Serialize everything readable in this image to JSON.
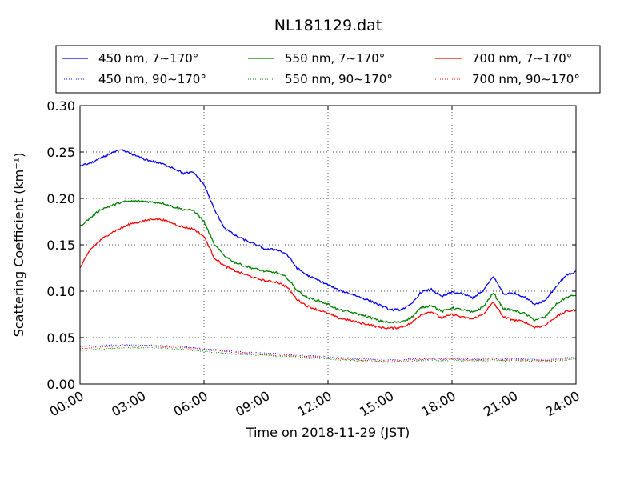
{
  "chart_data": {
    "type": "line",
    "title": "NL181129.dat",
    "xlabel": "Time on 2018-11-29 (JST)",
    "ylabel": "Scattering Coefficient (km⁻¹)",
    "xlim": [
      0,
      24
    ],
    "ylim": [
      0,
      0.3
    ],
    "x_tick_labels": [
      "00:00",
      "03:00",
      "06:00",
      "09:00",
      "12:00",
      "15:00",
      "18:00",
      "21:00",
      "24:00"
    ],
    "x_tick_values": [
      0,
      3,
      6,
      9,
      12,
      15,
      18,
      21,
      24
    ],
    "y_tick_labels": [
      "0.00",
      "0.05",
      "0.10",
      "0.15",
      "0.20",
      "0.25",
      "0.30"
    ],
    "y_tick_values": [
      0,
      0.05,
      0.1,
      0.15,
      0.2,
      0.25,
      0.3
    ],
    "grid": true,
    "legend_position": "top (above plot, 3 columns)",
    "x_hours": [
      0,
      0.5,
      1,
      1.5,
      2,
      2.5,
      3,
      3.5,
      4,
      4.5,
      5,
      5.5,
      6,
      6.5,
      7,
      7.5,
      8,
      8.5,
      9,
      9.5,
      10,
      10.5,
      11,
      11.5,
      12,
      12.5,
      13,
      13.5,
      14,
      14.5,
      15,
      15.5,
      16,
      16.5,
      17,
      17.5,
      18,
      18.5,
      19,
      19.5,
      20,
      20.5,
      21,
      21.5,
      22,
      22.5,
      23,
      23.5,
      24
    ],
    "series": [
      {
        "name": "450 nm, 7∼170°",
        "color": "#0000ff",
        "style": "solid",
        "values": [
          0.235,
          0.238,
          0.243,
          0.249,
          0.252,
          0.248,
          0.243,
          0.24,
          0.237,
          0.233,
          0.227,
          0.228,
          0.215,
          0.188,
          0.168,
          0.16,
          0.155,
          0.15,
          0.145,
          0.145,
          0.14,
          0.125,
          0.117,
          0.112,
          0.107,
          0.101,
          0.098,
          0.094,
          0.09,
          0.085,
          0.08,
          0.08,
          0.085,
          0.099,
          0.102,
          0.094,
          0.099,
          0.097,
          0.093,
          0.1,
          0.116,
          0.097,
          0.098,
          0.094,
          0.086,
          0.09,
          0.104,
          0.117,
          0.121
        ]
      },
      {
        "name": "550 nm, 7∼170°",
        "color": "#008000",
        "style": "solid",
        "values": [
          0.17,
          0.179,
          0.188,
          0.192,
          0.196,
          0.197,
          0.197,
          0.196,
          0.195,
          0.191,
          0.188,
          0.187,
          0.175,
          0.15,
          0.138,
          0.131,
          0.127,
          0.124,
          0.121,
          0.12,
          0.115,
          0.101,
          0.093,
          0.09,
          0.086,
          0.08,
          0.078,
          0.075,
          0.072,
          0.068,
          0.066,
          0.067,
          0.071,
          0.082,
          0.085,
          0.078,
          0.082,
          0.08,
          0.077,
          0.083,
          0.098,
          0.081,
          0.079,
          0.076,
          0.069,
          0.072,
          0.085,
          0.093,
          0.096
        ]
      },
      {
        "name": "700 nm, 7∼170°",
        "color": "#ff0000",
        "style": "solid",
        "values": [
          0.125,
          0.145,
          0.155,
          0.163,
          0.168,
          0.173,
          0.175,
          0.178,
          0.177,
          0.173,
          0.169,
          0.167,
          0.159,
          0.136,
          0.127,
          0.122,
          0.118,
          0.114,
          0.111,
          0.11,
          0.105,
          0.091,
          0.084,
          0.08,
          0.076,
          0.071,
          0.069,
          0.066,
          0.064,
          0.061,
          0.06,
          0.061,
          0.065,
          0.075,
          0.078,
          0.071,
          0.075,
          0.072,
          0.07,
          0.075,
          0.088,
          0.072,
          0.069,
          0.067,
          0.061,
          0.063,
          0.072,
          0.078,
          0.08
        ]
      },
      {
        "name": "450 nm, 90∼170°",
        "color": "#0000ff",
        "style": "dotted",
        "values": [
          0.04,
          0.041,
          0.041,
          0.042,
          0.042,
          0.042,
          0.042,
          0.042,
          0.041,
          0.041,
          0.04,
          0.039,
          0.038,
          0.037,
          0.036,
          0.035,
          0.034,
          0.034,
          0.033,
          0.033,
          0.032,
          0.031,
          0.03,
          0.03,
          0.029,
          0.028,
          0.028,
          0.027,
          0.027,
          0.026,
          0.026,
          0.026,
          0.027,
          0.027,
          0.028,
          0.027,
          0.028,
          0.027,
          0.027,
          0.027,
          0.028,
          0.027,
          0.027,
          0.027,
          0.026,
          0.026,
          0.027,
          0.028,
          0.029
        ]
      },
      {
        "name": "550 nm, 90∼170°",
        "color": "#008000",
        "style": "dotted",
        "values": [
          0.036,
          0.037,
          0.038,
          0.038,
          0.039,
          0.039,
          0.039,
          0.039,
          0.039,
          0.038,
          0.037,
          0.036,
          0.035,
          0.034,
          0.033,
          0.032,
          0.032,
          0.031,
          0.031,
          0.03,
          0.03,
          0.029,
          0.028,
          0.028,
          0.027,
          0.026,
          0.026,
          0.025,
          0.025,
          0.024,
          0.024,
          0.024,
          0.025,
          0.025,
          0.026,
          0.025,
          0.026,
          0.025,
          0.025,
          0.025,
          0.026,
          0.025,
          0.025,
          0.025,
          0.024,
          0.024,
          0.025,
          0.026,
          0.027
        ]
      },
      {
        "name": "700 nm, 90∼170°",
        "color": "#ff0000",
        "style": "dotted",
        "values": [
          0.038,
          0.039,
          0.04,
          0.04,
          0.041,
          0.041,
          0.041,
          0.041,
          0.04,
          0.04,
          0.039,
          0.038,
          0.037,
          0.036,
          0.035,
          0.034,
          0.033,
          0.032,
          0.032,
          0.031,
          0.031,
          0.03,
          0.029,
          0.029,
          0.028,
          0.027,
          0.027,
          0.026,
          0.026,
          0.025,
          0.025,
          0.025,
          0.026,
          0.026,
          0.027,
          0.026,
          0.027,
          0.026,
          0.026,
          0.026,
          0.027,
          0.026,
          0.026,
          0.026,
          0.025,
          0.025,
          0.026,
          0.027,
          0.028
        ]
      }
    ]
  }
}
